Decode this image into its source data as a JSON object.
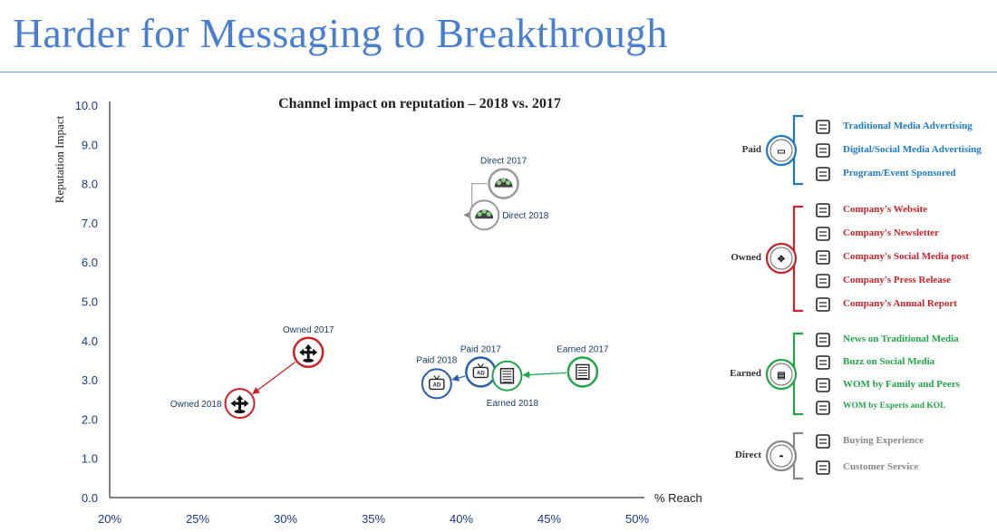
{
  "header": {
    "title": "Harder for Messaging to Breakthrough"
  },
  "chart_data": {
    "type": "scatter",
    "title": "Channel impact on reputation – 2018 vs. 2017",
    "xlabel": "% Reach",
    "ylabel": "Reputation Impact",
    "xlim": [
      20,
      50
    ],
    "ylim": [
      0,
      10
    ],
    "x_ticks": [
      "20%",
      "25%",
      "30%",
      "35%",
      "40%",
      "45%",
      "50%"
    ],
    "y_ticks": [
      "0.0",
      "1.0",
      "2.0",
      "3.0",
      "4.0",
      "5.0",
      "6.0",
      "7.0",
      "8.0",
      "9.0",
      "10.0"
    ],
    "series": [
      {
        "name": "Owned",
        "color": "#cc2229",
        "icon": "arrows-icon",
        "points": [
          {
            "label": "Owned 2017",
            "x": 31.3,
            "y": 3.7
          },
          {
            "label": "Owned 2018",
            "x": 27.4,
            "y": 2.4
          }
        ]
      },
      {
        "name": "Paid",
        "color": "#2a5fa8",
        "icon": "tv-ad-icon",
        "points": [
          {
            "label": "Paid 2017",
            "x": 41.1,
            "y": 3.2
          },
          {
            "label": "Paid 2018",
            "x": 38.6,
            "y": 2.9
          }
        ]
      },
      {
        "name": "Earned",
        "color": "#22a64a",
        "icon": "newspaper-icon",
        "points": [
          {
            "label": "Earned 2017",
            "x": 46.9,
            "y": 3.2
          },
          {
            "label": "Earned 2018",
            "x": 42.6,
            "y": 3.1
          }
        ]
      },
      {
        "name": "Direct",
        "color": "#888888",
        "icon": "gauge-icon",
        "points": [
          {
            "label": "Direct 2017",
            "x": 42.4,
            "y": 8.0
          },
          {
            "label": "Direct 2018",
            "x": 41.3,
            "y": 7.2
          }
        ]
      }
    ]
  },
  "legend": {
    "groups": [
      {
        "name": "Paid",
        "color": "#1e7ac8",
        "text_color": "#1e7ac8",
        "icon": "tv-ad-icon",
        "items": [
          {
            "label": "Traditional Media Advertising",
            "icon": "megaphone-icon"
          },
          {
            "label": "Digital/Social Media Advertising",
            "icon": "mobile-icon"
          },
          {
            "label": "Program/Event Sponsored",
            "icon": "pin-icon"
          }
        ]
      },
      {
        "name": "Owned",
        "color": "#cc2229",
        "text_color": "#cc2229",
        "icon": "arrows-icon",
        "items": [
          {
            "label": "Company's Website",
            "icon": "browser-icon"
          },
          {
            "label": "Company's Newsletter",
            "icon": "envelope-icon"
          },
          {
            "label": "Company's Social Media post",
            "icon": "social-icon"
          },
          {
            "label": "Company's Press Release",
            "icon": "document-icon"
          },
          {
            "label": "Company's Annual Report",
            "icon": "report-icon"
          }
        ]
      },
      {
        "name": "Earned",
        "color": "#22a64a",
        "text_color": "#22a64a",
        "icon": "newspaper-icon",
        "items": [
          {
            "label": "News on Traditional Media",
            "icon": "tv-icon"
          },
          {
            "label": "Buzz on Social Media",
            "icon": "chat-icon"
          },
          {
            "label": "WOM by Family and Peers",
            "icon": "people-icon"
          },
          {
            "label": "WOM by Experts and KOL",
            "icon": "expert-icon"
          }
        ]
      },
      {
        "name": "Direct",
        "color": "#888888",
        "text_color": "#888888",
        "icon": "gauge-icon",
        "items": [
          {
            "label": "Buying Experience",
            "icon": "cart-icon"
          },
          {
            "label": "Customer Service",
            "icon": "headset-icon"
          }
        ]
      }
    ]
  }
}
